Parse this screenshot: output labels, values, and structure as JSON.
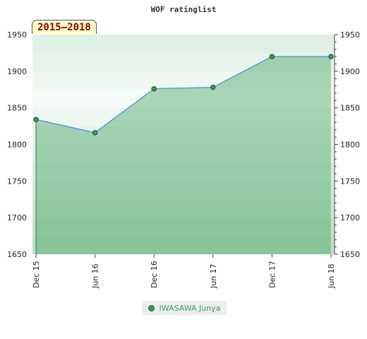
{
  "chart_data": {
    "type": "area",
    "title": "WOF ratinglist",
    "period_label": "2015–2018",
    "x_labels": [
      "Dec 15",
      "Jun 16",
      "Dec 16",
      "Jun 17",
      "Dec 17",
      "Jun 18"
    ],
    "ylim": [
      1650,
      1950
    ],
    "y_ticks": [
      1650,
      1700,
      1750,
      1800,
      1850,
      1900,
      1950
    ],
    "series": [
      {
        "name": "IWASAWA Junya",
        "values": [
          1834,
          1816,
          1876,
          1878,
          1920,
          1920
        ]
      }
    ],
    "line_color": "#5b9bd5",
    "fill_color": "#3a9b58",
    "legend_position": "bottom-center"
  }
}
